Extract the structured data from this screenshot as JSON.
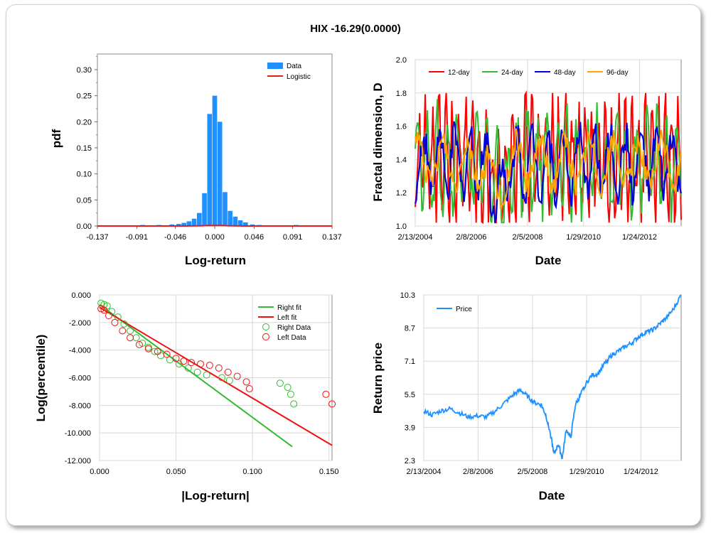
{
  "title": "HIX -16.29(0.0000)",
  "colors": {
    "data_blue": "#1e90ff",
    "logistic_red": "#e41a1c",
    "grid": "#d8d8d8",
    "c12": "#ff0000",
    "c24": "#33bb33",
    "c48": "#0000dd",
    "c96": "#ffa500",
    "price": "#1e90ff",
    "right": "#33bb33",
    "left": "#ee1111"
  },
  "chart_data": [
    {
      "id": "pdf",
      "type": "bar",
      "title": "",
      "xlabel": "Log-return",
      "ylabel": "pdf",
      "xlim": [
        -0.137,
        0.137
      ],
      "ylim": [
        0,
        0.33
      ],
      "xticks": [
        {
          "v": -0.137,
          "t": "-0.137"
        },
        {
          "v": -0.091,
          "t": "-0.091"
        },
        {
          "v": -0.046,
          "t": "-0.046"
        },
        {
          "v": 0.0,
          "t": "0.000"
        },
        {
          "v": 0.046,
          "t": "0.046"
        },
        {
          "v": 0.091,
          "t": "0.091"
        },
        {
          "v": 0.137,
          "t": "0.137"
        }
      ],
      "yticks": [
        {
          "v": 0,
          "t": "0.00"
        },
        {
          "v": 0.05,
          "t": "0.05"
        },
        {
          "v": 0.1,
          "t": "0.10"
        },
        {
          "v": 0.15,
          "t": "0.15"
        },
        {
          "v": 0.2,
          "t": "0.20"
        },
        {
          "v": 0.25,
          "t": "0.25"
        },
        {
          "v": 0.3,
          "t": "0.30"
        }
      ],
      "legend": [
        "Data",
        "Logistic"
      ],
      "bins": [
        {
          "x": -0.12,
          "h": 0.001
        },
        {
          "x": -0.084,
          "h": 0.002
        },
        {
          "x": -0.065,
          "h": 0.002
        },
        {
          "x": -0.05,
          "h": 0.003
        },
        {
          "x": -0.042,
          "h": 0.004
        },
        {
          "x": -0.036,
          "h": 0.006
        },
        {
          "x": -0.03,
          "h": 0.009
        },
        {
          "x": -0.024,
          "h": 0.014
        },
        {
          "x": -0.018,
          "h": 0.025
        },
        {
          "x": -0.012,
          "h": 0.063
        },
        {
          "x": -0.006,
          "h": 0.215
        },
        {
          "x": 0.0,
          "h": 0.25
        },
        {
          "x": 0.006,
          "h": 0.2
        },
        {
          "x": 0.012,
          "h": 0.065
        },
        {
          "x": 0.018,
          "h": 0.029
        },
        {
          "x": 0.024,
          "h": 0.018
        },
        {
          "x": 0.03,
          "h": 0.011
        },
        {
          "x": 0.036,
          "h": 0.007
        },
        {
          "x": 0.044,
          "h": 0.003
        },
        {
          "x": 0.052,
          "h": 0.002
        },
        {
          "x": 0.095,
          "h": 0.002
        },
        {
          "x": 0.115,
          "h": 0.001
        }
      ],
      "logistic": {
        "mu": 0.0,
        "s": 0.0075
      }
    },
    {
      "id": "fractal",
      "type": "line",
      "title": "",
      "xlabel": "Date",
      "ylabel": "Fractal dimension, D",
      "ylim": [
        1.0,
        2.0
      ],
      "xlim": [
        "2/13/2004",
        "7/15/2013"
      ],
      "xticks": [
        "2/13/2004",
        "2/8/2006",
        "2/5/2008",
        "1/29/2010",
        "1/24/2012"
      ],
      "yticks": [
        "1.0",
        "1.2",
        "1.4",
        "1.6",
        "1.8",
        "2.0"
      ],
      "series": [
        {
          "name": "12-day",
          "seed": 12,
          "amp": 0.3,
          "period": 6
        },
        {
          "name": "24-day",
          "seed": 24,
          "amp": 0.24,
          "period": 9
        },
        {
          "name": "48-day",
          "seed": 48,
          "amp": 0.17,
          "period": 14
        },
        {
          "name": "96-day",
          "seed": 96,
          "amp": 0.13,
          "period": 22
        }
      ]
    },
    {
      "id": "tails",
      "type": "scatter",
      "title": "",
      "xlabel": "|Log-return|",
      "ylabel": "Log(percentile)",
      "xlim": [
        0.0,
        0.152
      ],
      "ylim": [
        -12.0,
        0.0
      ],
      "xticks": [
        {
          "v": 0.0,
          "t": "0.000"
        },
        {
          "v": 0.05,
          "t": "0.050"
        },
        {
          "v": 0.1,
          "t": "0.100"
        },
        {
          "v": 0.15,
          "t": "0.150"
        }
      ],
      "yticks": [
        {
          "v": 0.0,
          "t": "0.000"
        },
        {
          "v": -2.0,
          "t": "-2.000"
        },
        {
          "v": -4.0,
          "t": "-4.000"
        },
        {
          "v": -6.0,
          "t": "-6.000"
        },
        {
          "v": -8.0,
          "t": "-8.000"
        },
        {
          "v": -10.0,
          "t": "-10.000"
        },
        {
          "v": -12.0,
          "t": "-12.000"
        }
      ],
      "legend": [
        "Right fit",
        "Left fit",
        "Right Data",
        "Left Data"
      ],
      "right_fit": [
        [
          0.0,
          -0.7
        ],
        [
          0.126,
          -11.0
        ]
      ],
      "left_fit": [
        [
          0.0,
          -0.9
        ],
        [
          0.152,
          -10.9
        ]
      ],
      "right_data": [
        [
          0.001,
          -0.6
        ],
        [
          0.003,
          -0.7
        ],
        [
          0.005,
          -0.8
        ],
        [
          0.008,
          -1.2
        ],
        [
          0.012,
          -1.6
        ],
        [
          0.016,
          -2.1
        ],
        [
          0.02,
          -2.6
        ],
        [
          0.024,
          -3.1
        ],
        [
          0.028,
          -3.5
        ],
        [
          0.032,
          -3.8
        ],
        [
          0.036,
          -4.1
        ],
        [
          0.04,
          -4.4
        ],
        [
          0.046,
          -4.7
        ],
        [
          0.052,
          -5.0
        ],
        [
          0.058,
          -5.3
        ],
        [
          0.064,
          -5.6
        ],
        [
          0.07,
          -5.8
        ],
        [
          0.08,
          -6.0
        ],
        [
          0.085,
          -6.2
        ],
        [
          0.118,
          -6.4
        ],
        [
          0.123,
          -6.7
        ],
        [
          0.125,
          -7.2
        ],
        [
          0.127,
          -7.9
        ]
      ],
      "left_data": [
        [
          0.001,
          -1.0
        ],
        [
          0.003,
          -1.1
        ],
        [
          0.006,
          -1.5
        ],
        [
          0.01,
          -2.0
        ],
        [
          0.015,
          -2.6
        ],
        [
          0.02,
          -3.1
        ],
        [
          0.026,
          -3.6
        ],
        [
          0.032,
          -3.9
        ],
        [
          0.038,
          -4.1
        ],
        [
          0.044,
          -4.3
        ],
        [
          0.05,
          -4.6
        ],
        [
          0.055,
          -4.8
        ],
        [
          0.06,
          -4.9
        ],
        [
          0.066,
          -5.0
        ],
        [
          0.072,
          -5.1
        ],
        [
          0.078,
          -5.3
        ],
        [
          0.084,
          -5.6
        ],
        [
          0.09,
          -5.9
        ],
        [
          0.096,
          -6.3
        ],
        [
          0.098,
          -6.8
        ],
        [
          0.148,
          -7.2
        ],
        [
          0.152,
          -7.9
        ]
      ]
    },
    {
      "id": "price",
      "type": "line",
      "title": "",
      "xlabel": "Date",
      "ylabel": "Return price",
      "ylim": [
        2.3,
        10.3
      ],
      "xlim": [
        "2/13/2004",
        "7/15/2013"
      ],
      "xticks": [
        "2/13/2004",
        "2/8/2006",
        "2/5/2008",
        "1/29/2010",
        "1/24/2012"
      ],
      "yticks": [
        "2.3",
        "3.9",
        "5.5",
        "7.1",
        "8.7",
        "10.3"
      ],
      "legend": [
        "Price"
      ],
      "series": [
        {
          "name": "Price",
          "points": [
            [
              "2/13/2004",
              4.7
            ],
            [
              "6/1/2004",
              4.5
            ],
            [
              "10/1/2004",
              4.7
            ],
            [
              "2/1/2005",
              4.8
            ],
            [
              "6/1/2005",
              4.6
            ],
            [
              "10/1/2005",
              4.4
            ],
            [
              "2/1/2006",
              4.45
            ],
            [
              "6/1/2006",
              4.4
            ],
            [
              "10/1/2006",
              4.7
            ],
            [
              "2/1/2007",
              5.1
            ],
            [
              "6/1/2007",
              5.5
            ],
            [
              "9/1/2007",
              5.7
            ],
            [
              "12/1/2007",
              5.4
            ],
            [
              "3/1/2008",
              5.1
            ],
            [
              "6/1/2008",
              5.0
            ],
            [
              "8/1/2008",
              4.5
            ],
            [
              "10/1/2008",
              3.6
            ],
            [
              "11/20/2008",
              2.6
            ],
            [
              "1/15/2009",
              3.1
            ],
            [
              "3/9/2009",
              2.4
            ],
            [
              "5/1/2009",
              3.8
            ],
            [
              "7/1/2009",
              3.4
            ],
            [
              "9/1/2009",
              5.0
            ],
            [
              "11/1/2009",
              5.4
            ],
            [
              "1/1/2010",
              5.9
            ],
            [
              "4/1/2010",
              6.4
            ],
            [
              "7/1/2010",
              6.5
            ],
            [
              "10/1/2010",
              7.0
            ],
            [
              "1/1/2011",
              7.4
            ],
            [
              "4/1/2011",
              7.6
            ],
            [
              "7/1/2011",
              7.8
            ],
            [
              "10/1/2011",
              8.0
            ],
            [
              "1/1/2012",
              8.3
            ],
            [
              "4/1/2012",
              8.5
            ],
            [
              "7/1/2012",
              8.6
            ],
            [
              "10/1/2012",
              8.9
            ],
            [
              "1/1/2013",
              9.2
            ],
            [
              "4/1/2013",
              9.6
            ],
            [
              "7/15/2013",
              10.3
            ]
          ]
        }
      ]
    }
  ]
}
